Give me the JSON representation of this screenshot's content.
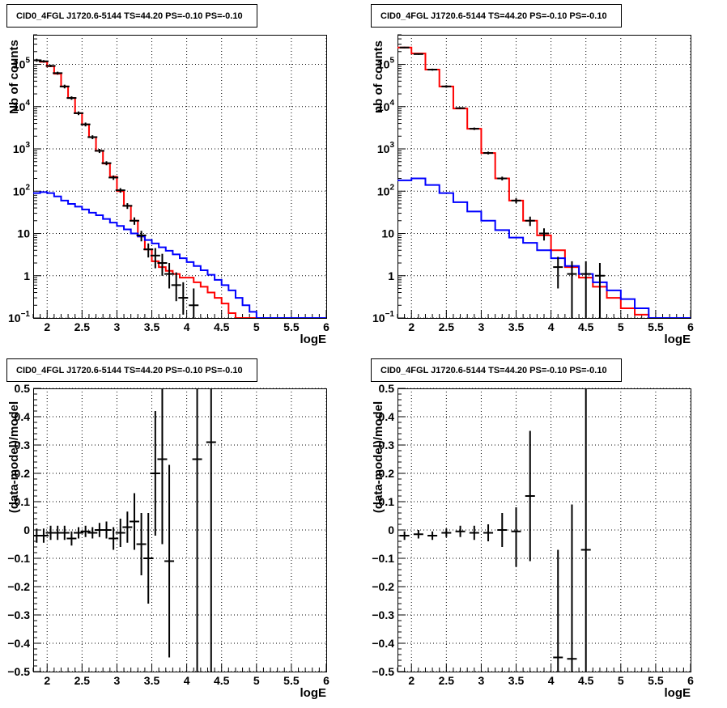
{
  "chart_data": [
    {
      "type": "line",
      "title": "CID0_4FGL J1720.6-5144 TS=44.20 PS=-0.10 PS=-0.10",
      "xlabel": "logE",
      "ylabel": "Nb of counts",
      "log_y": true,
      "grid": true,
      "xlim": [
        1.8,
        6.0
      ],
      "ylim": [
        0.1,
        500000
      ],
      "x_ticks": [
        "2",
        "2.5",
        "3",
        "3.5",
        "4",
        "4.5",
        "5",
        "5.5",
        "6"
      ],
      "y_ticks": [
        "10^-1",
        "1",
        "10",
        "10^2",
        "10^3",
        "10^4",
        "10^5"
      ],
      "series": [
        {
          "kind": "step",
          "color": "#ff0000",
          "x_edges": [
            1.8,
            1.9,
            2.0,
            2.1,
            2.2,
            2.3,
            2.4,
            2.5,
            2.6,
            2.7,
            2.8,
            2.9,
            3.0,
            3.1,
            3.2,
            3.3,
            3.4,
            3.5,
            3.6,
            3.7,
            3.8,
            3.9,
            4.0,
            4.1,
            4.2,
            4.3,
            4.4,
            4.5,
            4.6,
            4.7,
            4.8,
            4.9,
            5.0,
            5.1,
            5.2,
            5.3,
            5.4,
            5.5,
            5.6,
            5.7,
            5.8,
            5.9,
            6.0
          ],
          "values": [
            125000,
            115000,
            90000,
            60000,
            30000,
            16000,
            7000,
            3800,
            1900,
            900,
            450,
            220,
            100,
            45,
            20,
            8.5,
            4.2,
            2.2,
            1.6,
            1.3,
            1.1,
            0.9,
            0.9,
            0.7,
            0.55,
            0.4,
            0.3,
            0.22,
            0.13,
            0.1,
            0.1,
            0.1,
            0.1,
            0.1,
            0.1,
            0.1,
            0.1,
            0.1,
            0.1,
            0.1,
            0.1,
            0.1
          ]
        },
        {
          "kind": "step",
          "color": "#0000ff",
          "x_edges": [
            1.8,
            1.9,
            2.0,
            2.1,
            2.2,
            2.3,
            2.4,
            2.5,
            2.6,
            2.7,
            2.8,
            2.9,
            3.0,
            3.1,
            3.2,
            3.3,
            3.4,
            3.5,
            3.6,
            3.7,
            3.8,
            3.9,
            4.0,
            4.1,
            4.2,
            4.3,
            4.4,
            4.5,
            4.6,
            4.7,
            4.8,
            4.9,
            5.0,
            5.1,
            5.2,
            5.3,
            5.4,
            5.5,
            5.6,
            5.7,
            5.8,
            5.9,
            6.0
          ],
          "values": [
            90,
            95,
            90,
            75,
            60,
            50,
            43,
            37,
            31,
            27,
            22,
            18,
            15,
            12.5,
            10,
            8.5,
            7,
            5.8,
            4.7,
            3.9,
            3.2,
            2.6,
            2.1,
            1.7,
            1.35,
            1.05,
            0.8,
            0.6,
            0.45,
            0.3,
            0.2,
            0.14,
            0.1,
            0.1,
            0.1,
            0.1,
            0.1,
            0.1,
            0.1,
            0.1,
            0.1,
            0.1
          ]
        },
        {
          "kind": "points",
          "color": "#000000",
          "points": [
            {
              "x": 1.85,
              "y": 125000,
              "ylo": 115000,
              "yhi": 135000
            },
            {
              "x": 1.95,
              "y": 118000,
              "ylo": 110000,
              "yhi": 126000
            },
            {
              "x": 2.05,
              "y": 92000,
              "ylo": 86000,
              "yhi": 98000
            },
            {
              "x": 2.15,
              "y": 62000,
              "ylo": 57000,
              "yhi": 67000
            },
            {
              "x": 2.25,
              "y": 30000,
              "ylo": 27000,
              "yhi": 33000
            },
            {
              "x": 2.35,
              "y": 16000,
              "ylo": 14500,
              "yhi": 17500
            },
            {
              "x": 2.45,
              "y": 7000,
              "ylo": 6300,
              "yhi": 7700
            },
            {
              "x": 2.55,
              "y": 3800,
              "ylo": 3400,
              "yhi": 4200
            },
            {
              "x": 2.65,
              "y": 1900,
              "ylo": 1700,
              "yhi": 2100
            },
            {
              "x": 2.75,
              "y": 900,
              "ylo": 800,
              "yhi": 1000
            },
            {
              "x": 2.85,
              "y": 460,
              "ylo": 410,
              "yhi": 510
            },
            {
              "x": 2.95,
              "y": 210,
              "ylo": 185,
              "yhi": 235
            },
            {
              "x": 3.05,
              "y": 105,
              "ylo": 92,
              "yhi": 118
            },
            {
              "x": 3.15,
              "y": 45,
              "ylo": 38,
              "yhi": 52
            },
            {
              "x": 3.25,
              "y": 20,
              "ylo": 16,
              "yhi": 24
            },
            {
              "x": 3.35,
              "y": 9,
              "ylo": 6.5,
              "yhi": 11.5
            },
            {
              "x": 3.45,
              "y": 4.2,
              "ylo": 2.7,
              "yhi": 5.8
            },
            {
              "x": 3.55,
              "y": 3,
              "ylo": 1.5,
              "yhi": 4.5
            },
            {
              "x": 3.65,
              "y": 2,
              "ylo": 1,
              "yhi": 3.3
            },
            {
              "x": 3.75,
              "y": 1.1,
              "ylo": 0.5,
              "yhi": 2
            },
            {
              "x": 3.85,
              "y": 0.6,
              "ylo": 0.25,
              "yhi": 1.2
            },
            {
              "x": 3.95,
              "y": 0.3,
              "ylo": 0.12,
              "yhi": 0.7
            },
            {
              "x": 4.1,
              "y": 0.2,
              "ylo": 0.1,
              "yhi": 0.5
            }
          ]
        }
      ]
    },
    {
      "type": "line",
      "title": "CID0_4FGL J1720.6-5144 TS=44.20 PS=-0.10 PS=-0.10",
      "xlabel": "logE",
      "ylabel": "nb of counts",
      "log_y": true,
      "grid": true,
      "xlim": [
        1.8,
        6.0
      ],
      "ylim": [
        0.1,
        500000
      ],
      "x_ticks": [
        "2",
        "2.5",
        "3",
        "3.5",
        "4",
        "4.5",
        "5",
        "5.5",
        "6"
      ],
      "y_ticks": [
        "10^-1",
        "1",
        "10",
        "10^2",
        "10^3",
        "10^4",
        "10^5"
      ],
      "series": [
        {
          "kind": "step",
          "color": "#ff0000",
          "x_edges": [
            1.8,
            2.0,
            2.2,
            2.4,
            2.6,
            2.8,
            3.0,
            3.2,
            3.4,
            3.6,
            3.8,
            4.0,
            4.2,
            4.4,
            4.6,
            4.8,
            5.0,
            5.2,
            5.4,
            5.6,
            5.8,
            6.0
          ],
          "values": [
            250000,
            180000,
            75000,
            30000,
            9000,
            3000,
            800,
            200,
            60,
            20,
            9,
            4,
            1.6,
            0.9,
            0.55,
            0.3,
            0.17,
            0.12,
            0.1,
            0.1,
            0.1
          ]
        },
        {
          "kind": "step",
          "color": "#0000ff",
          "x_edges": [
            1.8,
            2.0,
            2.2,
            2.4,
            2.6,
            2.8,
            3.0,
            3.2,
            3.4,
            3.6,
            3.8,
            4.0,
            4.2,
            4.4,
            4.6,
            4.8,
            5.0,
            5.2,
            5.4,
            5.6,
            5.8,
            6.0
          ],
          "values": [
            180,
            200,
            140,
            90,
            55,
            33,
            20,
            12,
            8,
            6,
            4,
            2.6,
            1.7,
            1.1,
            0.7,
            0.45,
            0.28,
            0.17,
            0.1,
            0.1,
            0.1
          ]
        },
        {
          "kind": "points",
          "color": "#000000",
          "points": [
            {
              "x": 1.9,
              "y": 250000,
              "ylo": 240000,
              "yhi": 260000
            },
            {
              "x": 2.1,
              "y": 175000,
              "ylo": 168000,
              "yhi": 182000
            },
            {
              "x": 2.3,
              "y": 75000,
              "ylo": 71000,
              "yhi": 79000
            },
            {
              "x": 2.5,
              "y": 30000,
              "ylo": 28000,
              "yhi": 32000
            },
            {
              "x": 2.7,
              "y": 9200,
              "ylo": 8700,
              "yhi": 9700
            },
            {
              "x": 2.9,
              "y": 3000,
              "ylo": 2800,
              "yhi": 3200
            },
            {
              "x": 3.1,
              "y": 800,
              "ylo": 740,
              "yhi": 860
            },
            {
              "x": 3.3,
              "y": 200,
              "ylo": 180,
              "yhi": 220
            },
            {
              "x": 3.5,
              "y": 60,
              "ylo": 52,
              "yhi": 68
            },
            {
              "x": 3.7,
              "y": 20,
              "ylo": 15,
              "yhi": 25
            },
            {
              "x": 3.9,
              "y": 10,
              "ylo": 6.8,
              "yhi": 13.2
            },
            {
              "x": 4.1,
              "y": 1.6,
              "ylo": 0.5,
              "yhi": 2.8
            },
            {
              "x": 4.3,
              "y": 1.1,
              "ylo": 0.1,
              "yhi": 2.2
            },
            {
              "x": 4.5,
              "y": 1.1,
              "ylo": 0.1,
              "yhi": 2.2
            },
            {
              "x": 4.7,
              "y": 1,
              "ylo": 0.1,
              "yhi": 2
            }
          ]
        }
      ]
    },
    {
      "type": "scatter",
      "title": "CID0_4FGL J1720.6-5144 TS=44.20 PS=-0.10 PS=-0.10",
      "xlabel": "logE",
      "ylabel": "(data-model)/model",
      "grid": true,
      "xlim": [
        1.8,
        6.0
      ],
      "ylim": [
        -0.5,
        0.5
      ],
      "x_ticks": [
        "2",
        "2.5",
        "3",
        "3.5",
        "4",
        "4.5",
        "5",
        "5.5",
        "6"
      ],
      "y_ticks": [
        "−0.5",
        "−0.4",
        "−0.3",
        "−0.2",
        "−0.1",
        "0",
        "0.1",
        "0.2",
        "0.3",
        "0.4",
        "0.5"
      ],
      "series": [
        {
          "kind": "points",
          "color": "#000000",
          "points": [
            {
              "x": 1.85,
              "y": -0.02,
              "ylo": -0.045,
              "yhi": 0.005
            },
            {
              "x": 1.95,
              "y": -0.02,
              "ylo": -0.045,
              "yhi": 0.005
            },
            {
              "x": 2.05,
              "y": -0.01,
              "ylo": -0.035,
              "yhi": 0.015
            },
            {
              "x": 2.15,
              "y": -0.01,
              "ylo": -0.035,
              "yhi": 0.015
            },
            {
              "x": 2.25,
              "y": -0.01,
              "ylo": -0.035,
              "yhi": 0.015
            },
            {
              "x": 2.35,
              "y": -0.03,
              "ylo": -0.055,
              "yhi": -0.005
            },
            {
              "x": 2.45,
              "y": -0.01,
              "ylo": -0.03,
              "yhi": 0.01
            },
            {
              "x": 2.55,
              "y": -0.005,
              "ylo": -0.025,
              "yhi": 0.015
            },
            {
              "x": 2.65,
              "y": -0.01,
              "ylo": -0.03,
              "yhi": 0.01
            },
            {
              "x": 2.75,
              "y": 0.0,
              "ylo": -0.025,
              "yhi": 0.025
            },
            {
              "x": 2.85,
              "y": 0.0,
              "ylo": -0.03,
              "yhi": 0.03
            },
            {
              "x": 2.95,
              "y": -0.03,
              "ylo": -0.07,
              "yhi": 0.01
            },
            {
              "x": 3.05,
              "y": -0.01,
              "ylo": -0.06,
              "yhi": 0.04
            },
            {
              "x": 3.15,
              "y": 0.01,
              "ylo": -0.045,
              "yhi": 0.065
            },
            {
              "x": 3.25,
              "y": 0.03,
              "ylo": -0.07,
              "yhi": 0.13
            },
            {
              "x": 3.35,
              "y": -0.05,
              "ylo": -0.16,
              "yhi": 0.06
            },
            {
              "x": 3.45,
              "y": -0.1,
              "ylo": -0.26,
              "yhi": 0.06
            },
            {
              "x": 3.55,
              "y": 0.2,
              "ylo": -0.02,
              "yhi": 0.42
            },
            {
              "x": 3.65,
              "y": 0.25,
              "ylo": -0.05,
              "yhi": 0.5
            },
            {
              "x": 3.75,
              "y": -0.11,
              "ylo": -0.45,
              "yhi": 0.23
            },
            {
              "x": 4.15,
              "y": 0.25,
              "ylo": -0.5,
              "yhi": 0.5
            },
            {
              "x": 4.35,
              "y": 0.31,
              "ylo": -0.5,
              "yhi": 0.5
            }
          ]
        }
      ]
    },
    {
      "type": "scatter",
      "title": "CID0_4FGL J1720.6-5144 TS=44.20 PS=-0.10 PS=-0.10",
      "xlabel": "logE",
      "ylabel": "(data-model)/model",
      "grid": true,
      "xlim": [
        1.8,
        6.0
      ],
      "ylim": [
        -0.5,
        0.5
      ],
      "x_ticks": [
        "2",
        "2.5",
        "3",
        "3.5",
        "4",
        "4.5",
        "5",
        "5.5",
        "6"
      ],
      "y_ticks": [
        "−0.5",
        "−0.4",
        "−0.3",
        "−0.2",
        "−0.1",
        "0",
        "0.1",
        "0.2",
        "0.3",
        "0.4",
        "0.5"
      ],
      "series": [
        {
          "kind": "points",
          "color": "#000000",
          "points": [
            {
              "x": 1.9,
              "y": -0.02,
              "ylo": -0.035,
              "yhi": -0.005
            },
            {
              "x": 2.1,
              "y": -0.015,
              "ylo": -0.03,
              "yhi": 0.0
            },
            {
              "x": 2.3,
              "y": -0.02,
              "ylo": -0.035,
              "yhi": -0.005
            },
            {
              "x": 2.5,
              "y": -0.01,
              "ylo": -0.025,
              "yhi": 0.005
            },
            {
              "x": 2.7,
              "y": -0.005,
              "ylo": -0.025,
              "yhi": 0.015
            },
            {
              "x": 2.9,
              "y": -0.01,
              "ylo": -0.035,
              "yhi": 0.015
            },
            {
              "x": 3.1,
              "y": -0.01,
              "ylo": -0.04,
              "yhi": 0.02
            },
            {
              "x": 3.3,
              "y": 0.0,
              "ylo": -0.06,
              "yhi": 0.06
            },
            {
              "x": 3.5,
              "y": -0.005,
              "ylo": -0.13,
              "yhi": 0.08
            },
            {
              "x": 3.7,
              "y": 0.12,
              "ylo": -0.11,
              "yhi": 0.35
            },
            {
              "x": 4.1,
              "y": -0.45,
              "ylo": -0.5,
              "yhi": -0.07
            },
            {
              "x": 4.3,
              "y": -0.455,
              "ylo": -0.5,
              "yhi": 0.09
            },
            {
              "x": 4.5,
              "y": -0.07,
              "ylo": -0.5,
              "yhi": 0.5
            }
          ]
        }
      ]
    }
  ]
}
